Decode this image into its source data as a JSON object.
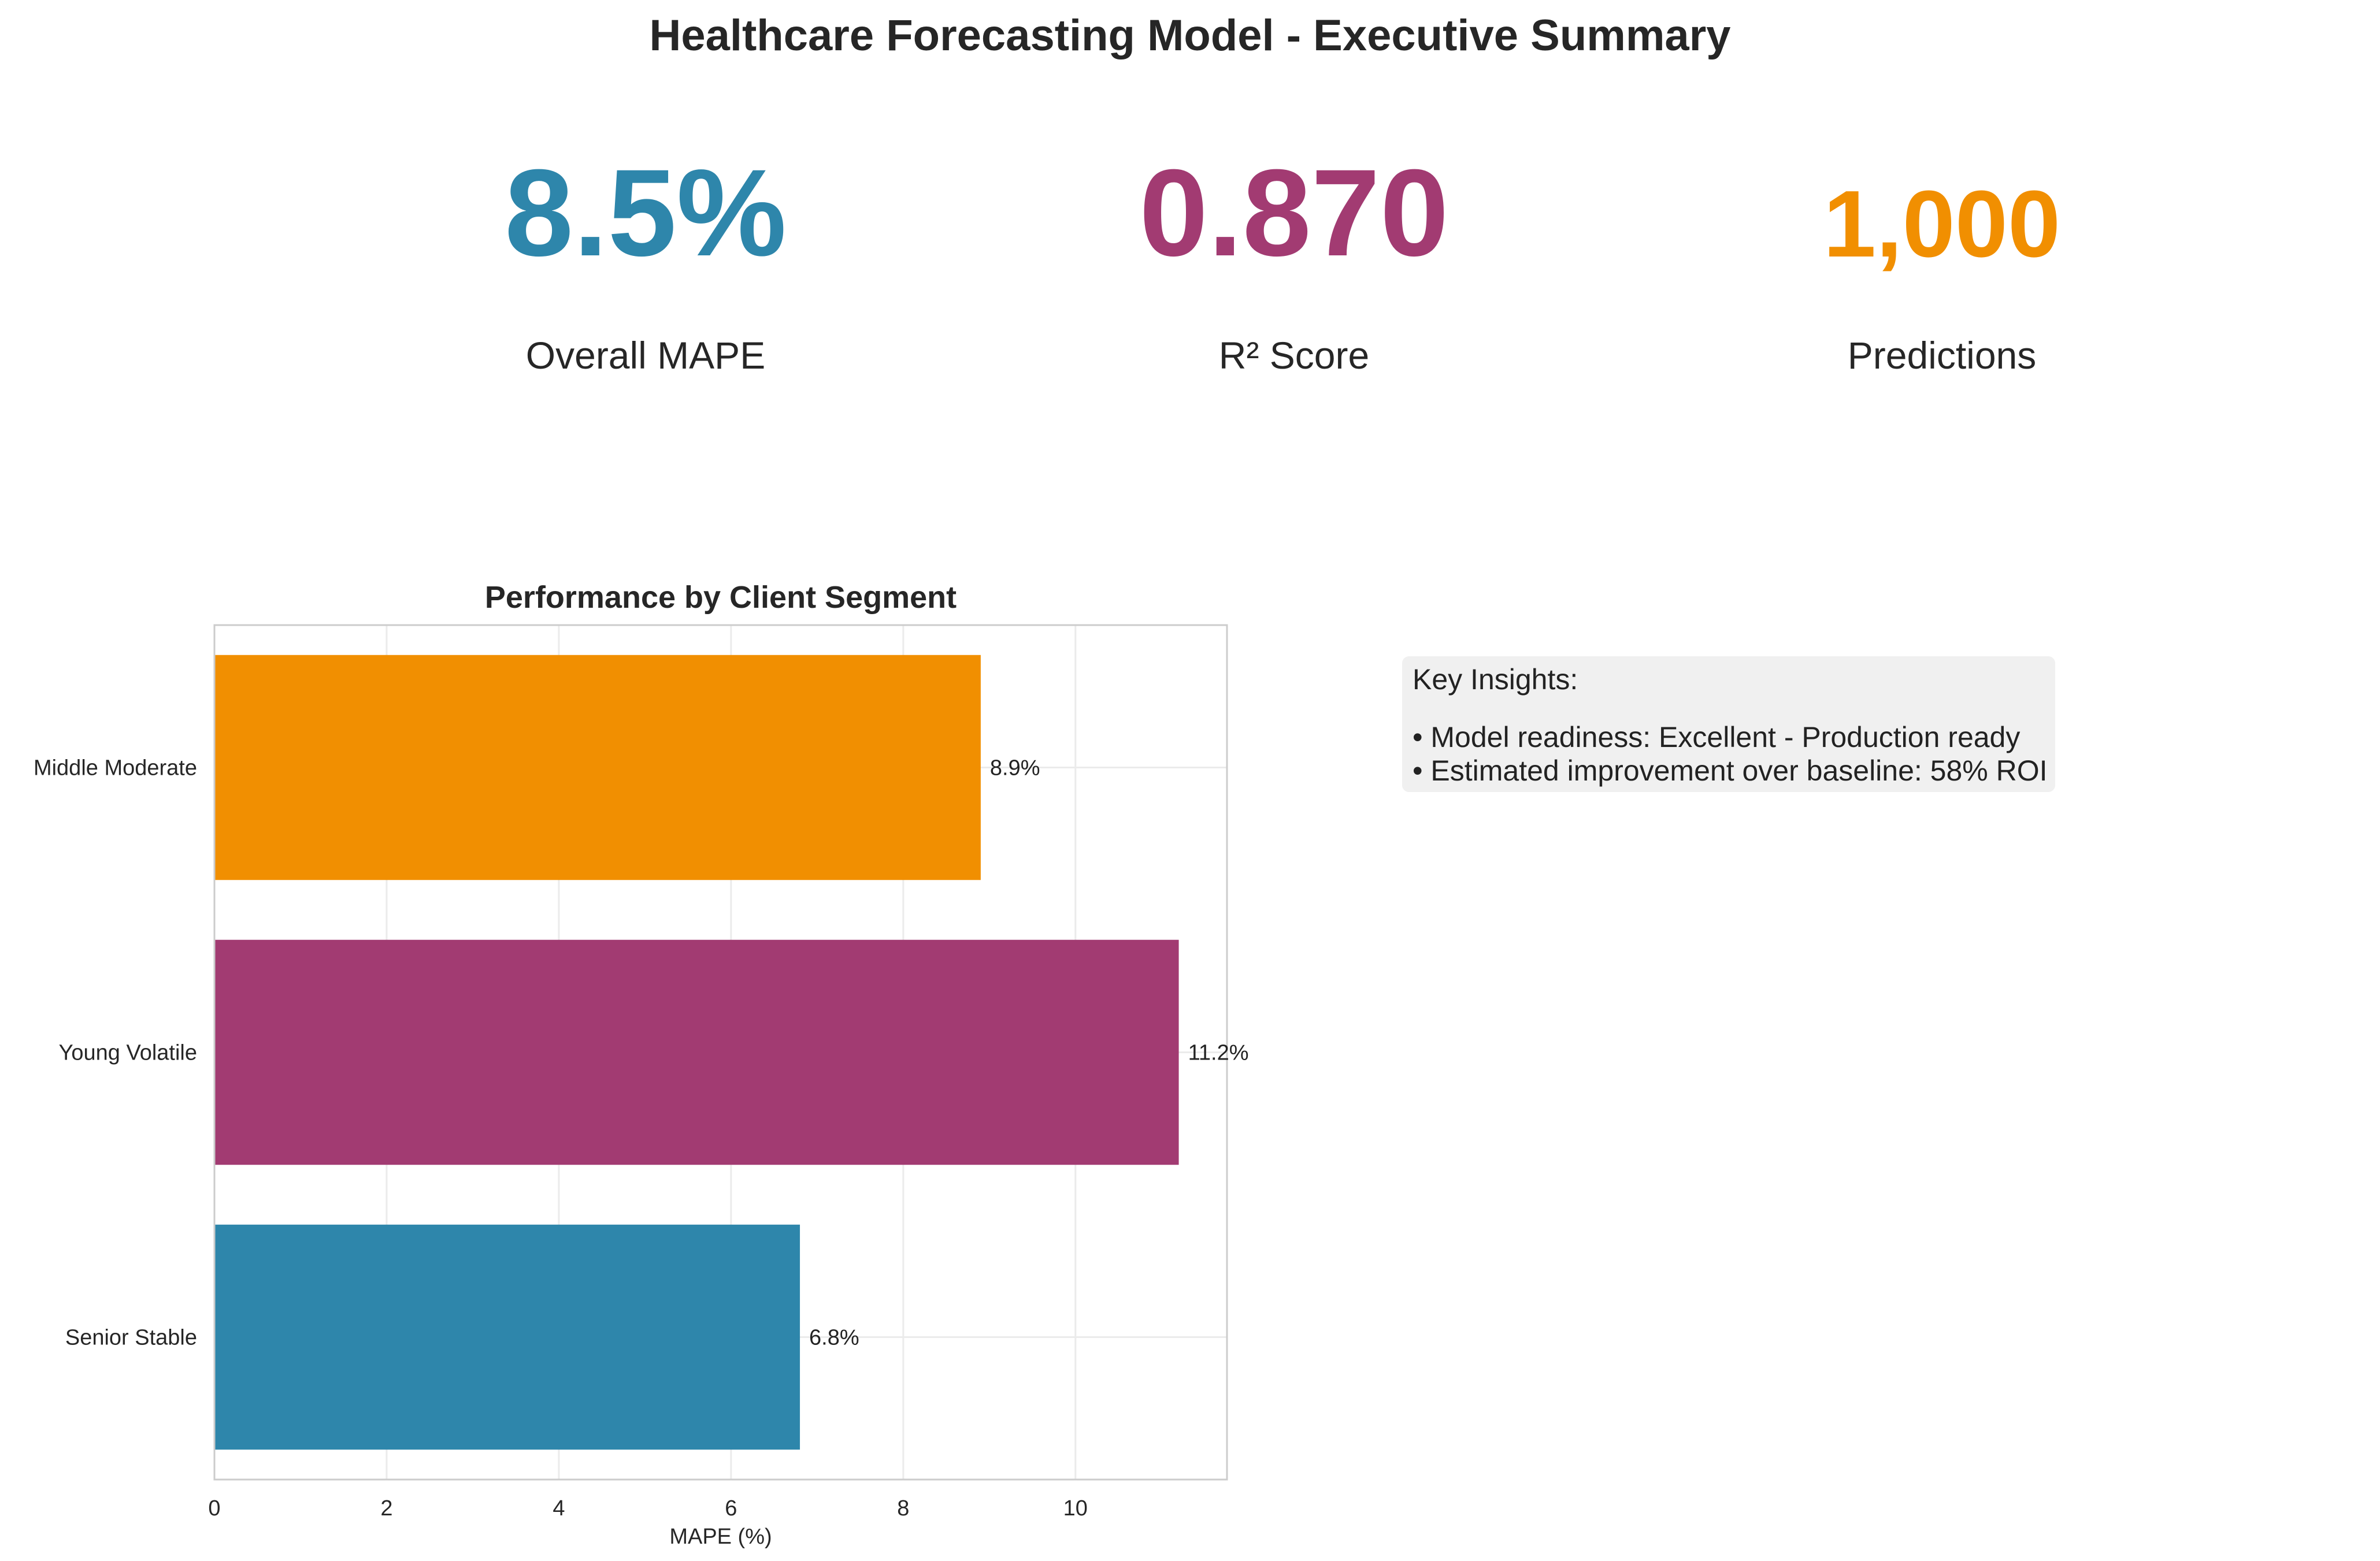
{
  "title": "Healthcare Forecasting Model - Executive Summary",
  "kpis": [
    {
      "value": "8.5%",
      "label": "Overall MAPE",
      "color": "#2e86ab"
    },
    {
      "value": "0.870",
      "label": "R² Score",
      "color": "#a23b72"
    },
    {
      "value": "1,000",
      "label": "Predictions",
      "color": "#f18f01"
    }
  ],
  "insights": {
    "heading": "Key Insights:",
    "lines": [
      "• Model readiness: Excellent - Production ready",
      "• Estimated improvement over baseline: 58% ROI"
    ]
  },
  "chart_data": {
    "type": "bar",
    "orientation": "horizontal",
    "title": "Performance by Client Segment",
    "xlabel": "MAPE (%)",
    "ylabel": "",
    "categories": [
      "Senior Stable",
      "Young Volatile",
      "Middle Moderate"
    ],
    "values": [
      6.8,
      11.2,
      8.9
    ],
    "value_labels": [
      "6.8%",
      "11.2%",
      "8.9%"
    ],
    "colors": [
      "#2e86ab",
      "#a23b72",
      "#f18f01"
    ],
    "xlim": [
      0,
      11.76
    ],
    "xticks": [
      0,
      2,
      4,
      6,
      8,
      10
    ],
    "grid": true
  }
}
